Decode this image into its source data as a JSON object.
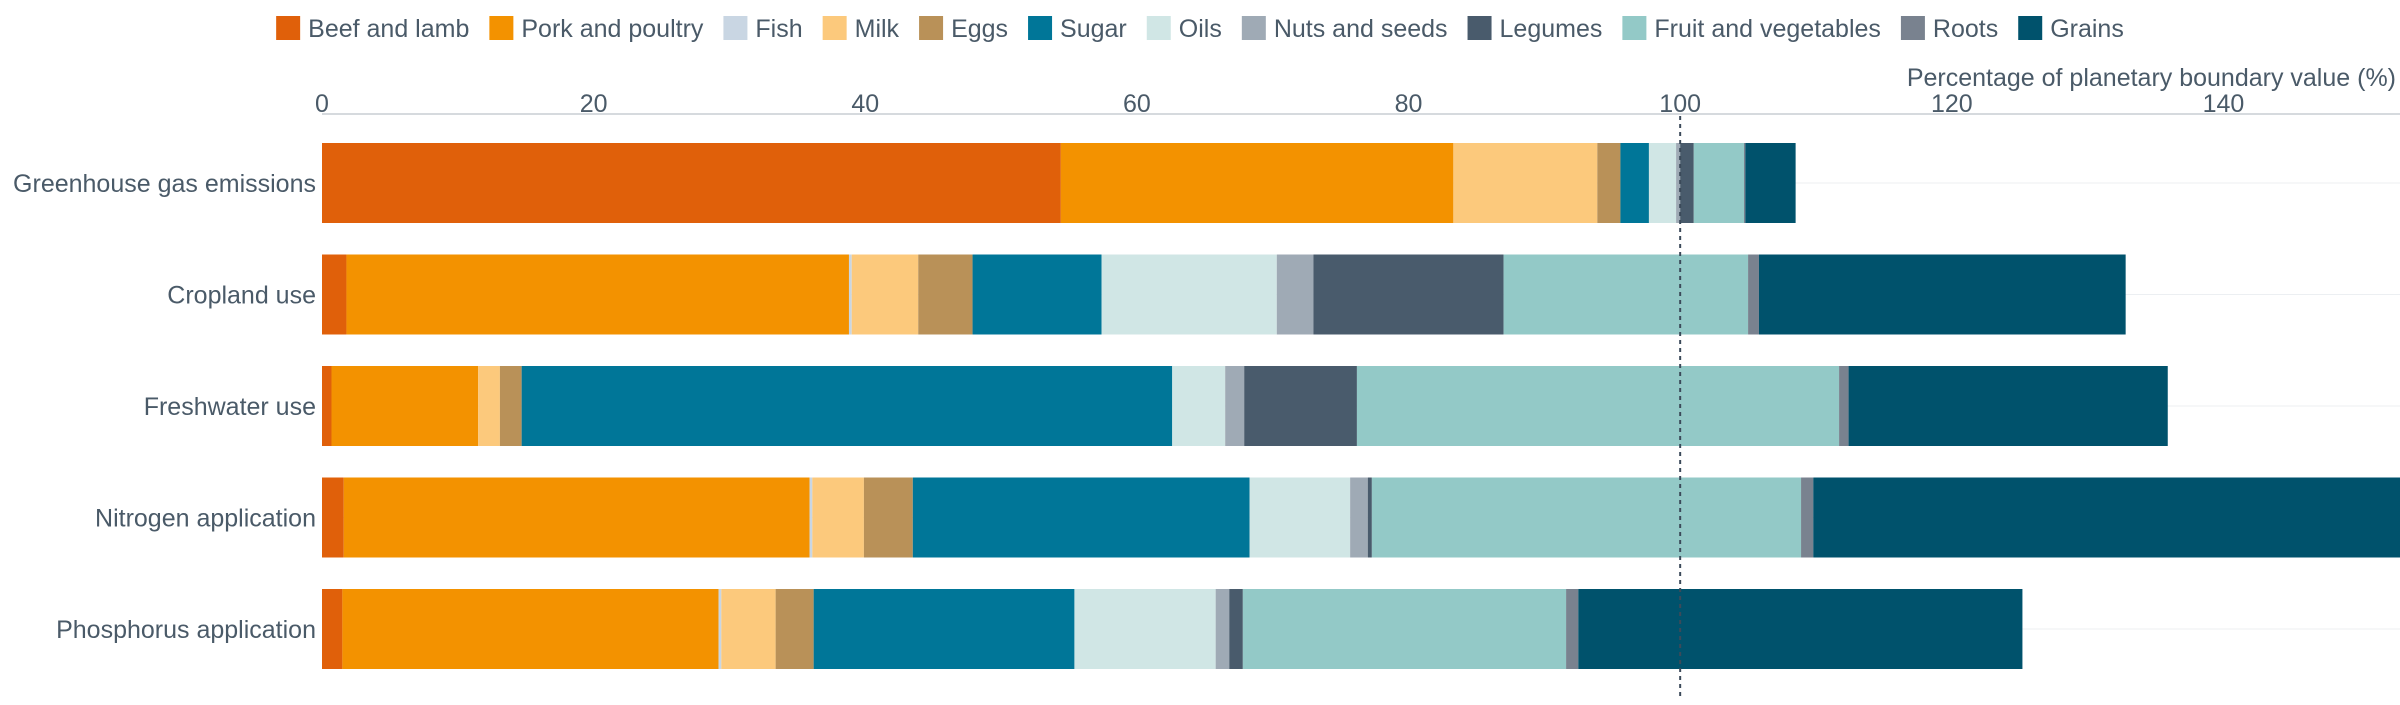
{
  "chart_data": {
    "type": "bar",
    "orientation": "horizontal",
    "stacked": true,
    "title": "",
    "xlabel": "Percentage of planetary boundary value (%)",
    "ylabel": "",
    "xlim": [
      0,
      153
    ],
    "xticks": [
      0,
      20,
      40,
      60,
      80,
      100,
      120,
      140
    ],
    "legend_position": "top",
    "reference_line": {
      "x": 100,
      "style": "dotted"
    },
    "categories": [
      "Greenhouse gas emissions",
      "Cropland use",
      "Freshwater use",
      "Nitrogen application",
      "Phosphorus application"
    ],
    "series": [
      {
        "name": "Beef and lamb",
        "color": "#E0600A",
        "values": [
          54.4,
          1.8,
          0.7,
          1.6,
          1.5
        ]
      },
      {
        "name": "Pork and poultry",
        "color": "#F39200",
        "values": [
          28.9,
          37.0,
          10.8,
          34.3,
          27.7
        ]
      },
      {
        "name": "Fish",
        "color": "#C9D6E3",
        "values": [
          0.0,
          0.2,
          0.0,
          0.2,
          0.2
        ]
      },
      {
        "name": "Milk",
        "color": "#FCC97C",
        "values": [
          10.6,
          4.9,
          1.6,
          3.8,
          4.0
        ]
      },
      {
        "name": "Eggs",
        "color": "#B99158",
        "values": [
          1.7,
          4.0,
          1.6,
          3.6,
          2.8
        ]
      },
      {
        "name": "Sugar",
        "color": "#007698",
        "values": [
          2.1,
          9.5,
          47.9,
          24.8,
          19.2
        ]
      },
      {
        "name": "Oils",
        "color": "#D0E6E5",
        "values": [
          2.0,
          12.9,
          3.9,
          7.4,
          10.4
        ]
      },
      {
        "name": "Nuts and seeds",
        "color": "#9FAAB5",
        "values": [
          0.3,
          2.7,
          1.4,
          1.3,
          1.0
        ]
      },
      {
        "name": "Legumes",
        "color": "#495B6C",
        "values": [
          1.0,
          14.0,
          8.3,
          0.3,
          1.0
        ]
      },
      {
        "name": "Fruit and vegetables",
        "color": "#93C9C7",
        "values": [
          3.7,
          18.0,
          35.5,
          31.6,
          23.8
        ]
      },
      {
        "name": "Roots",
        "color": "#79828F",
        "values": [
          0.1,
          0.8,
          0.7,
          0.9,
          0.9
        ]
      },
      {
        "name": "Grains",
        "color": "#00526C",
        "values": [
          3.7,
          27.0,
          23.5,
          43.5,
          32.7
        ]
      }
    ]
  }
}
